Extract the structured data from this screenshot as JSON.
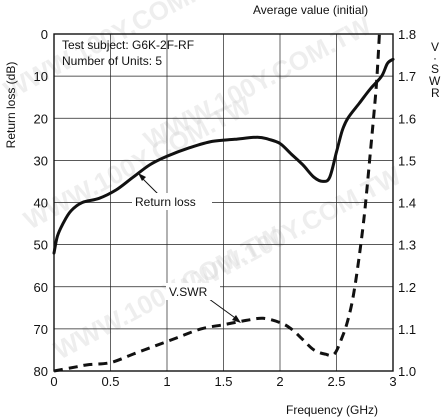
{
  "chart_data": {
    "type": "line",
    "top_caption": "Average value (initial)",
    "test_subject": "Test subject: G6K-2F-RF",
    "units": "Number of Units: 5",
    "xlabel": "Frequency (GHz)",
    "ylabel_left": "Return loss (dB)",
    "ylabel_right_letters": [
      "V",
      "·",
      "S",
      "W",
      "R"
    ],
    "xlim": [
      0,
      3
    ],
    "ylim_left": [
      0,
      80
    ],
    "ylim_right": [
      1.0,
      1.8
    ],
    "left_axis_inverted": true,
    "x_ticks": [
      "0",
      "0.5",
      "1",
      "1.5",
      "2",
      "2.5",
      "3"
    ],
    "y_left_ticks": [
      "0",
      "10",
      "20",
      "30",
      "40",
      "50",
      "60",
      "70",
      "80"
    ],
    "y_right_ticks": [
      "1.8",
      "1.7",
      "1.6",
      "1.5",
      "1.4",
      "1.3",
      "1.2",
      "1.1",
      "1.0"
    ],
    "grid": true,
    "watermark": "WWW.100Y.COM.TW",
    "annotations": [
      {
        "text": "Return loss",
        "series": 0
      },
      {
        "text": "V.SWR",
        "series": 1
      }
    ],
    "series": [
      {
        "axis": "left",
        "style": "solid",
        "x": [
          0.0,
          0.03,
          0.08,
          0.15,
          0.25,
          0.4,
          0.55,
          0.7,
          0.85,
          1.0,
          1.2,
          1.4,
          1.6,
          1.8,
          1.9,
          2.0,
          2.1,
          2.2,
          2.3,
          2.38,
          2.44,
          2.5,
          2.55,
          2.6,
          2.7,
          2.8,
          2.9,
          2.95,
          3.0
        ],
        "values": [
          52,
          48,
          45,
          42,
          40,
          39,
          37,
          34,
          31,
          29,
          27,
          25.5,
          25,
          24.5,
          25,
          26,
          28.5,
          31,
          34,
          35,
          34,
          28,
          23,
          20,
          16.5,
          13,
          10,
          7,
          6
        ]
      },
      {
        "axis": "right",
        "style": "dashed",
        "x": [
          0.0,
          0.2,
          0.3,
          0.5,
          0.7,
          0.9,
          1.1,
          1.3,
          1.5,
          1.7,
          1.85,
          2.0,
          2.1,
          2.2,
          2.3,
          2.4,
          2.48,
          2.55,
          2.6,
          2.65,
          2.7,
          2.75,
          2.8,
          2.85,
          2.88
        ],
        "values": [
          1.0,
          1.01,
          1.015,
          1.02,
          1.04,
          1.06,
          1.08,
          1.1,
          1.11,
          1.12,
          1.125,
          1.115,
          1.1,
          1.075,
          1.05,
          1.04,
          1.04,
          1.08,
          1.12,
          1.18,
          1.27,
          1.38,
          1.52,
          1.67,
          1.8
        ]
      }
    ]
  }
}
